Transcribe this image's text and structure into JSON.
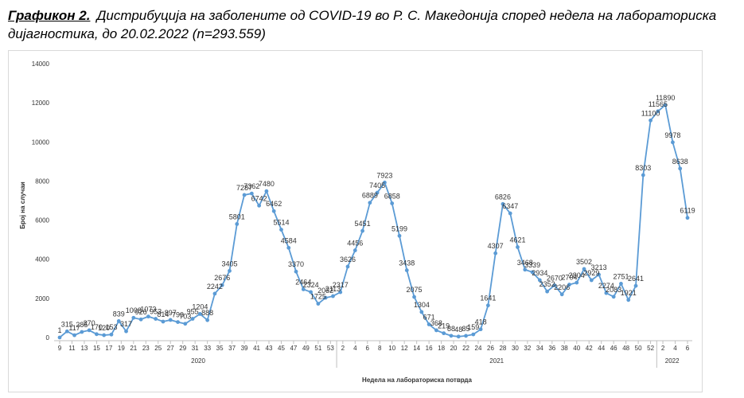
{
  "caption": {
    "label": "Графикон 2.",
    "text": "Дистрибуција на заболените од COVID-19 во Р. С. Македонија според недела на лабораториска дијагностика, до 20.02.2022 (n=293.559)"
  },
  "chart_data": {
    "type": "line",
    "title": "",
    "xlabel": "Недела на лабораториска потврда",
    "ylabel": "Број на случаи",
    "ylim": [
      0,
      14000
    ],
    "y_ticks": [
      0,
      2000,
      4000,
      6000,
      8000,
      10000,
      12000,
      14000
    ],
    "grid": false,
    "line_color": "#5b9bd5",
    "x_tick_labels": [
      "9",
      "11",
      "13",
      "15",
      "17",
      "19",
      "21",
      "23",
      "25",
      "27",
      "29",
      "31",
      "33",
      "35",
      "37",
      "39",
      "41",
      "43",
      "45",
      "47",
      "49",
      "51",
      "53",
      "2",
      "4",
      "6",
      "8",
      "10",
      "12",
      "14",
      "16",
      "18",
      "20",
      "22",
      "24",
      "26",
      "28",
      "30",
      "32",
      "34",
      "36",
      "38",
      "40",
      "42",
      "44",
      "46",
      "48",
      "50",
      "52",
      "2",
      "4",
      "6"
    ],
    "x_groups": [
      {
        "label": "2020",
        "weeks": "9–53"
      },
      {
        "label": "2021",
        "weeks": "1–52"
      },
      {
        "label": "2022",
        "weeks": "1–7"
      }
    ],
    "data_labels": [
      {
        "text": "1",
        "week": 9,
        "value": 1
      },
      {
        "text": "315",
        "week": 10,
        "value": 315
      },
      {
        "text": "117",
        "week": 11,
        "value": 117
      },
      {
        "text": "285",
        "week": 12,
        "value": 285
      },
      {
        "text": "370",
        "week": 13,
        "value": 370
      },
      {
        "text": "170",
        "week": 14,
        "value": 170
      },
      {
        "text": "120",
        "week": 15,
        "value": 120
      },
      {
        "text": "153",
        "week": 16,
        "value": 153
      },
      {
        "text": "839",
        "week": 17,
        "value": 839
      },
      {
        "text": "317",
        "week": 18,
        "value": 317
      },
      {
        "text": "1008",
        "week": 19,
        "value": 1008
      },
      {
        "text": "926",
        "week": 20,
        "value": 926
      },
      {
        "text": "1073",
        "week": 21,
        "value": 1073
      },
      {
        "text": "953",
        "week": 22,
        "value": 953
      },
      {
        "text": "814",
        "week": 23,
        "value": 814
      },
      {
        "text": "897",
        "week": 24,
        "value": 897
      },
      {
        "text": "790",
        "week": 25,
        "value": 790
      },
      {
        "text": "703",
        "week": 26,
        "value": 703
      },
      {
        "text": "955",
        "week": 27,
        "value": 955
      },
      {
        "text": "1204",
        "week": 28,
        "value": 1204
      },
      {
        "text": "888",
        "week": 29,
        "value": 888
      },
      {
        "text": "2242",
        "week": 30,
        "value": 2242
      },
      {
        "text": "2676",
        "week": 31,
        "value": 2676
      },
      {
        "text": "3405",
        "week": 32,
        "value": 3405
      },
      {
        "text": "5801",
        "week": 33,
        "value": 5801
      },
      {
        "text": "7287",
        "week": 34,
        "value": 7287
      },
      {
        "text": "7362",
        "week": 35,
        "value": 7362
      },
      {
        "text": "6742",
        "week": 36,
        "value": 6742
      },
      {
        "text": "7480",
        "week": 37,
        "value": 7480
      },
      {
        "text": "6462",
        "week": 38,
        "value": 6462
      },
      {
        "text": "5514",
        "week": 39,
        "value": 5514
      },
      {
        "text": "4584",
        "week": 40,
        "value": 4584
      },
      {
        "text": "3370",
        "week": 41,
        "value": 3370
      },
      {
        "text": "2464",
        "week": 42,
        "value": 2464
      },
      {
        "text": "2324",
        "week": 43,
        "value": 2324
      },
      {
        "text": "1725",
        "week": 44,
        "value": 1725
      },
      {
        "text": "2032",
        "week": 45,
        "value": 2032
      },
      {
        "text": "2113",
        "week": 46,
        "value": 2113
      },
      {
        "text": "2317",
        "week": 47,
        "value": 2317
      },
      {
        "text": "3626",
        "week": 48,
        "value": 3626
      },
      {
        "text": "4456",
        "week": 49,
        "value": 4456
      },
      {
        "text": "5451",
        "week": 50,
        "value": 5451
      },
      {
        "text": "6889",
        "week": 51,
        "value": 6889
      },
      {
        "text": "7405",
        "week": 52,
        "value": 7405
      },
      {
        "text": "7923",
        "week": 53,
        "value": 7923
      },
      {
        "text": "6858",
        "week": 54,
        "value": 6858
      },
      {
        "text": "5199",
        "week": 55,
        "value": 5199
      },
      {
        "text": "3438",
        "week": 56,
        "value": 3438
      },
      {
        "text": "2075",
        "week": 57,
        "value": 2075
      },
      {
        "text": "1304",
        "week": 58,
        "value": 1304
      },
      {
        "text": "671",
        "week": 59,
        "value": 671
      },
      {
        "text": "368",
        "week": 60,
        "value": 368
      },
      {
        "text": "219",
        "week": 61,
        "value": 219
      },
      {
        "text": "88",
        "week": 62,
        "value": 88
      },
      {
        "text": "48",
        "week": 63,
        "value": 48
      },
      {
        "text": "85",
        "week": 64,
        "value": 85
      },
      {
        "text": "159",
        "week": 65,
        "value": 159
      },
      {
        "text": "418",
        "week": 66,
        "value": 418
      },
      {
        "text": "1641",
        "week": 67,
        "value": 1641
      },
      {
        "text": "4307",
        "week": 68,
        "value": 4307
      },
      {
        "text": "6826",
        "week": 69,
        "value": 6826
      },
      {
        "text": "6347",
        "week": 70,
        "value": 6347
      },
      {
        "text": "4621",
        "week": 71,
        "value": 4621
      },
      {
        "text": "3468",
        "week": 72,
        "value": 3468
      },
      {
        "text": "3339",
        "week": 73,
        "value": 3339
      },
      {
        "text": "2934",
        "week": 74,
        "value": 2934
      },
      {
        "text": "2352",
        "week": 75,
        "value": 2352
      },
      {
        "text": "2670",
        "week": 76,
        "value": 2670
      },
      {
        "text": "2206",
        "week": 77,
        "value": 2206
      },
      {
        "text": "2704",
        "week": 78,
        "value": 2704
      },
      {
        "text": "2804",
        "week": 79,
        "value": 2804
      },
      {
        "text": "3502",
        "week": 80,
        "value": 3502
      },
      {
        "text": "2929",
        "week": 81,
        "value": 2929
      },
      {
        "text": "3213",
        "week": 82,
        "value": 3213
      },
      {
        "text": "2274",
        "week": 83,
        "value": 2274
      },
      {
        "text": "2083",
        "week": 84,
        "value": 2083
      },
      {
        "text": "2751",
        "week": 85,
        "value": 2751
      },
      {
        "text": "1921",
        "week": 86,
        "value": 1921
      },
      {
        "text": "2641",
        "week": 87,
        "value": 2641
      },
      {
        "text": "8303",
        "week": 88,
        "value": 8303
      },
      {
        "text": "11100",
        "week": 89,
        "value": 11100
      },
      {
        "text": "11565",
        "week": 90,
        "value": 11565
      },
      {
        "text": "11890",
        "week": 91,
        "value": 11890
      },
      {
        "text": "9978",
        "week": 92,
        "value": 9978
      },
      {
        "text": "8638",
        "week": 93,
        "value": 8638
      },
      {
        "text": "6119",
        "week": 94,
        "value": 6119
      }
    ]
  }
}
